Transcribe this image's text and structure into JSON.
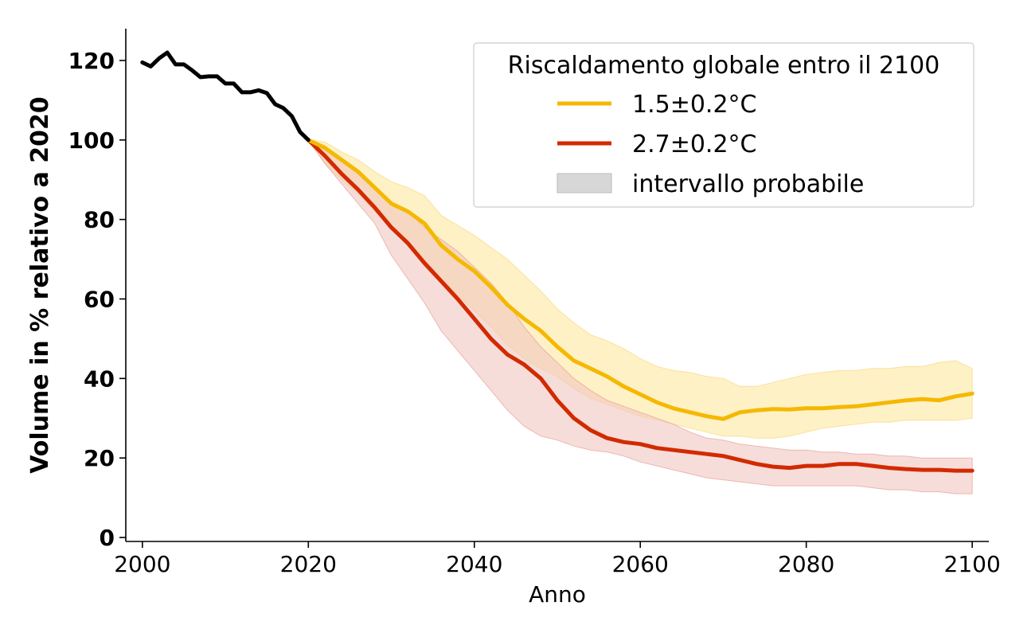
{
  "chart_data": {
    "type": "line",
    "xlabel": "Anno",
    "ylabel": "Volume in % relativo a 2020",
    "xlim": [
      1998,
      2102
    ],
    "ylim": [
      -1,
      128
    ],
    "xticks": [
      2000,
      2020,
      2040,
      2060,
      2080,
      2100
    ],
    "yticks": [
      0,
      20,
      40,
      60,
      80,
      100,
      120
    ],
    "grid": false,
    "legend": {
      "title": "Riscaldamento globale entro il 2100",
      "placement": "top-right",
      "band_label": "intervallo probabile",
      "band_color": "#d7d7d7"
    },
    "historical": {
      "color": "#000000",
      "x": [
        2000,
        2001,
        2002,
        2003,
        2004,
        2005,
        2006,
        2007,
        2008,
        2009,
        2010,
        2011,
        2012,
        2013,
        2014,
        2015,
        2016,
        2017,
        2018,
        2019,
        2020
      ],
      "y": [
        119.5,
        118.5,
        120.5,
        122,
        119,
        119,
        117.5,
        115.8,
        116,
        116,
        114.2,
        114.2,
        112,
        112,
        112.5,
        111.8,
        109,
        108,
        106,
        102,
        100
      ]
    },
    "series": [
      {
        "name": "1.5±0.2°C",
        "color": "#f5b800",
        "band_color": "#fde9a8",
        "x": [
          2020,
          2022,
          2024,
          2026,
          2028,
          2030,
          2032,
          2034,
          2036,
          2038,
          2040,
          2042,
          2044,
          2046,
          2048,
          2050,
          2052,
          2054,
          2056,
          2058,
          2060,
          2062,
          2064,
          2066,
          2068,
          2070,
          2072,
          2074,
          2076,
          2078,
          2080,
          2082,
          2084,
          2086,
          2088,
          2090,
          2092,
          2094,
          2096,
          2098,
          2100
        ],
        "y": [
          100,
          98,
          95,
          92,
          88,
          84,
          82,
          79,
          73.5,
          70,
          67,
          63,
          58.5,
          55,
          52,
          48,
          44.5,
          42.5,
          40.5,
          38,
          36,
          34,
          32.5,
          31.5,
          30.5,
          29.8,
          31.5,
          32,
          32.3,
          32.2,
          32.5,
          32.5,
          32.8,
          33,
          33.5,
          34,
          34.5,
          34.8,
          34.5,
          35.5,
          36.2
        ],
        "lower": [
          100,
          94,
          90,
          86.5,
          82,
          78,
          74,
          70,
          65,
          61,
          57,
          53,
          48.5,
          45,
          42.5,
          40.5,
          37.5,
          35,
          33.5,
          32,
          30.5,
          29.5,
          28.5,
          27.5,
          26.5,
          25.5,
          25.5,
          25,
          25,
          25.5,
          26.5,
          27.5,
          28,
          28.5,
          29,
          29,
          29.5,
          29.5,
          29.5,
          29.5,
          30
        ],
        "upper": [
          100,
          99.5,
          97,
          95,
          92,
          89.5,
          88,
          86,
          81,
          78.5,
          76,
          73,
          70,
          66,
          62,
          57.5,
          54,
          51,
          49.5,
          47.5,
          45,
          43,
          42,
          41.5,
          40.5,
          40,
          38,
          38,
          39,
          40,
          41,
          41.5,
          42,
          42,
          42.5,
          42.5,
          43,
          43,
          44,
          44.5,
          42.5
        ]
      },
      {
        "name": "2.7±0.2°C",
        "color": "#d22a00",
        "band_color": "#f0c6c0",
        "x": [
          2020,
          2022,
          2024,
          2026,
          2028,
          2030,
          2032,
          2034,
          2036,
          2038,
          2040,
          2042,
          2044,
          2046,
          2048,
          2050,
          2052,
          2054,
          2056,
          2058,
          2060,
          2062,
          2064,
          2066,
          2068,
          2070,
          2072,
          2074,
          2076,
          2078,
          2080,
          2082,
          2084,
          2086,
          2088,
          2090,
          2092,
          2094,
          2096,
          2098,
          2100
        ],
        "y": [
          100,
          96,
          91.5,
          87.5,
          83,
          78,
          74,
          69,
          64.5,
          60,
          55,
          50,
          46,
          43.5,
          40,
          34.5,
          30,
          27,
          25,
          24,
          23.5,
          22.5,
          22,
          21.5,
          21,
          20.5,
          19.5,
          18.5,
          17.8,
          17.5,
          18,
          18,
          18.5,
          18.5,
          18,
          17.5,
          17.2,
          17,
          17,
          16.8,
          16.8
        ],
        "lower": [
          100,
          94,
          89,
          84,
          79,
          71,
          65,
          59,
          52,
          47,
          42,
          37,
          32,
          28,
          25.5,
          24.5,
          23,
          22,
          21.5,
          20.5,
          19,
          18,
          17,
          16,
          15,
          14.5,
          14,
          13.5,
          13,
          13,
          13,
          13,
          13,
          13,
          12.5,
          12,
          12,
          11.5,
          11.5,
          11,
          11
        ],
        "upper": [
          100,
          98.5,
          95,
          92,
          88,
          84,
          82,
          78,
          75,
          72,
          68,
          64,
          59,
          53,
          48,
          44,
          40,
          37,
          34.5,
          33,
          31.5,
          30,
          28.5,
          26.5,
          25,
          24.5,
          23.5,
          23,
          22.5,
          22,
          22,
          21.5,
          21.5,
          21,
          21,
          20.5,
          20.5,
          20,
          20,
          20,
          20
        ]
      }
    ]
  }
}
